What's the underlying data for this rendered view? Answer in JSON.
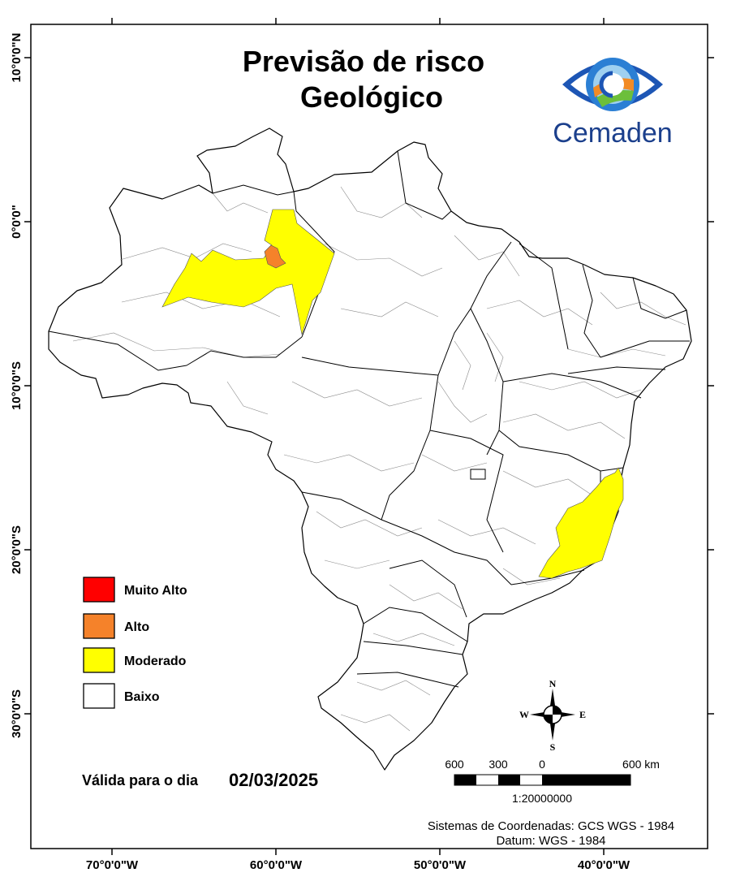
{
  "title": {
    "line1": "Previsão de risco",
    "line2": "Geológico"
  },
  "logo": {
    "text": "Cemaden",
    "icon": "cemaden-eye-logo"
  },
  "graticule": {
    "left": [
      "10°0'0\"N",
      "0°0'0\"",
      "10°0'0\"S",
      "20°0'0\"S",
      "30°0'0\"S"
    ],
    "bottom": [
      "70°0'0\"W",
      "60°0'0\"W",
      "50°0'0\"W",
      "40°0'0\"W"
    ]
  },
  "legend": {
    "items": [
      {
        "label": "Muito Alto",
        "color": "#ff0000"
      },
      {
        "label": "Alto",
        "color": "#f5822a"
      },
      {
        "label": "Moderado",
        "color": "#ffff00"
      },
      {
        "label": "Baixo",
        "color": "#ffffff"
      }
    ]
  },
  "validity": {
    "label": "Válida para o dia",
    "date": "02/03/2025"
  },
  "compass": {
    "n": "N",
    "s": "S",
    "e": "E",
    "w": "W"
  },
  "scale_bar": {
    "labels": [
      "600",
      "300",
      "0",
      "600 km"
    ],
    "ratio": "1:20000000"
  },
  "credits": {
    "line1": "Sistemas de Coordenadas: GCS WGS - 1984",
    "line2": "Datum: WGS - 1984"
  },
  "colors": {
    "moderado": "#ffff00",
    "alto": "#f5822a",
    "muito_alto": "#ff0000",
    "logo_blue": "#1b3f8c"
  }
}
